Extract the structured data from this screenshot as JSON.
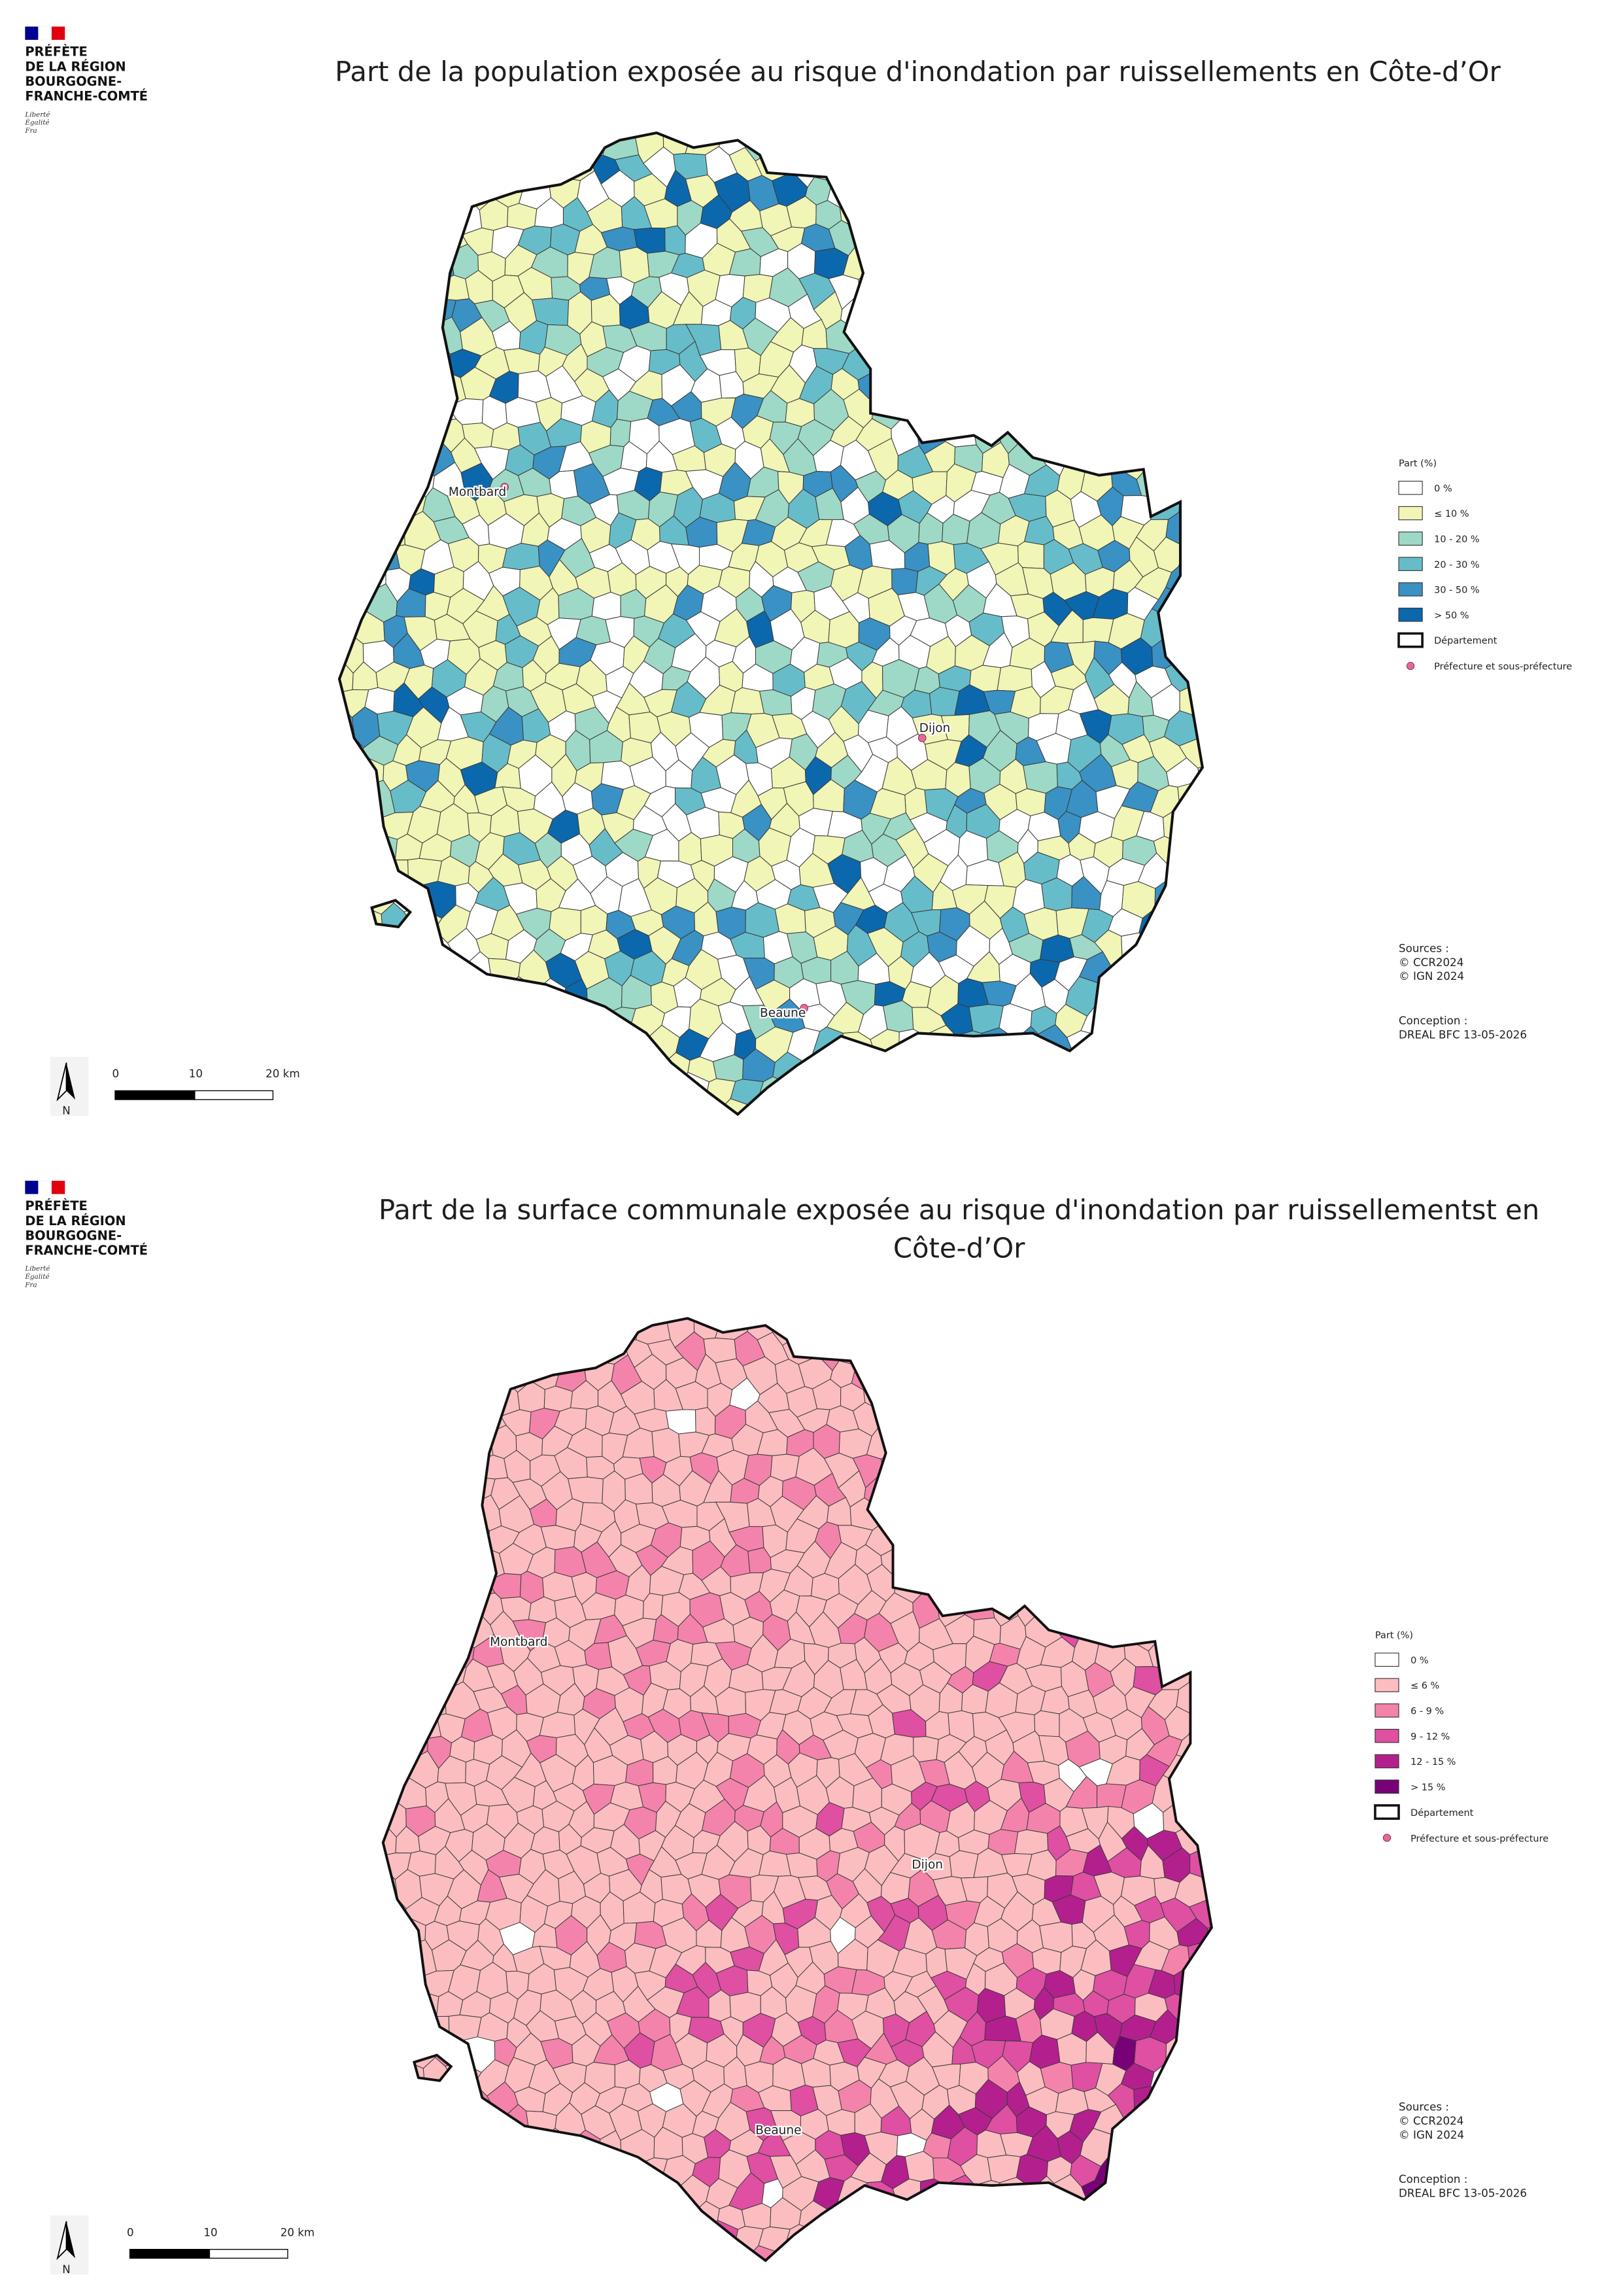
{
  "panels": [
    {
      "logo": {
        "lines": [
          "PRÉFÈTE",
          "DE LA RÉGION",
          "BOURGOGNE-",
          "FRANCHE-COMTÉ"
        ],
        "motto": [
          "Liberté",
          "Égalité",
          "Fra"
        ]
      },
      "title": [
        "Part de la population exposée au risque d'inondation par ruissellements en Côte-d’Or"
      ],
      "cities": [
        "Montbard",
        "Dijon",
        "Beaune"
      ],
      "legend": {
        "title": "Part (%)",
        "classes": [
          {
            "label": "0 %",
            "color": "#ffffff"
          },
          {
            "label": "≤ 10 %",
            "color": "#f1f5b5"
          },
          {
            "label": "10 - 20 %",
            "color": "#9dd9c6"
          },
          {
            "label": "20 - 30 %",
            "color": "#66bdc9"
          },
          {
            "label": "30 - 50 %",
            "color": "#3a91c4"
          },
          {
            "label": "> 50 %",
            "color": "#0b68ad"
          }
        ],
        "department": "Département",
        "prefecture": "Préfecture et sous-préfecture"
      },
      "sources": [
        "Sources :",
        "© CCR2024",
        "© IGN 2024"
      ],
      "conception": [
        "Conception :",
        "DREAL BFC 13-05-2026"
      ],
      "scale": [
        "0",
        "10",
        "20 km"
      ],
      "north": "N"
    },
    {
      "logo": {
        "lines": [
          "PRÉFÈTE",
          "DE LA RÉGION",
          "BOURGOGNE-",
          "FRANCHE-COMTÉ"
        ],
        "motto": [
          "Liberté",
          "Égalité",
          "Fra"
        ]
      },
      "title": [
        "Part de la surface communale exposée au risque d'inondation par ruissellementst en",
        "Côte-d’Or"
      ],
      "cities": [
        "Montbard",
        "Dijon",
        "Beaune"
      ],
      "legend": {
        "title": "Part (%)",
        "classes": [
          {
            "label": "0 %",
            "color": "#ffffff"
          },
          {
            "label": "≤ 6 %",
            "color": "#fbbdc0"
          },
          {
            "label": "6 - 9 %",
            "color": "#f483ab"
          },
          {
            "label": "9 - 12 %",
            "color": "#df4fa2"
          },
          {
            "label": "12 - 15 %",
            "color": "#b3208e"
          },
          {
            "label": "> 15 %",
            "color": "#790177"
          }
        ],
        "department": "Département",
        "prefecture": "Préfecture et sous-préfecture"
      },
      "sources": [
        "Sources :",
        "© CCR2024",
        "© IGN 2024"
      ],
      "conception": [
        "Conception :",
        "DREAL BFC 13-05-2026"
      ],
      "scale": [
        "0",
        "10",
        "20 km"
      ],
      "north": "N"
    }
  ]
}
